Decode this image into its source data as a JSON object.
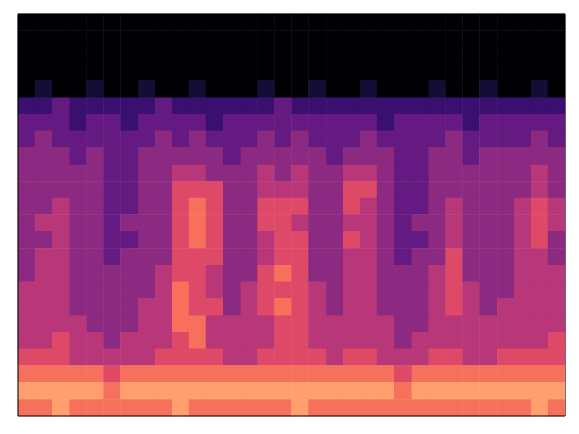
{
  "chart_data": {
    "type": "heatmap",
    "tick_labels": false,
    "grid": false,
    "color_range": [
      0,
      9
    ],
    "cells": [
      [
        0,
        0,
        0,
        0,
        0,
        0,
        0,
        0,
        0,
        0,
        0,
        0,
        0,
        0,
        0,
        0,
        0,
        0,
        0,
        0,
        0,
        0,
        0,
        0,
        0,
        0,
        0,
        0,
        0,
        0,
        0,
        0
      ],
      [
        0,
        0,
        0,
        0,
        0,
        0,
        0,
        0,
        0,
        0,
        0,
        0,
        0,
        0,
        0,
        0,
        0,
        0,
        0,
        0,
        0,
        0,
        0,
        0,
        0,
        0,
        0,
        0,
        0,
        0,
        0,
        0
      ],
      [
        0,
        0,
        0,
        0,
        0,
        0,
        0,
        0,
        0,
        0,
        0,
        0,
        0,
        0,
        0,
        0,
        0,
        0,
        0,
        0,
        0,
        0,
        0,
        0,
        0,
        0,
        0,
        0,
        0,
        0,
        0,
        0
      ],
      [
        0,
        0,
        0,
        0,
        0,
        0,
        0,
        0,
        0,
        0,
        0,
        0,
        0,
        0,
        0,
        0,
        0,
        0,
        0,
        0,
        0,
        0,
        0,
        0,
        0,
        0,
        0,
        0,
        0,
        0,
        0,
        0
      ],
      [
        0,
        1,
        0,
        0,
        1,
        0,
        0,
        1,
        0,
        0,
        1,
        0,
        0,
        0,
        1,
        0,
        0,
        1,
        0,
        0,
        1,
        0,
        0,
        0,
        1,
        0,
        0,
        1,
        0,
        0,
        1,
        0
      ],
      [
        2,
        2,
        3,
        2,
        2,
        2,
        2,
        2,
        3,
        2,
        2,
        2,
        2,
        2,
        2,
        3,
        2,
        2,
        2,
        2,
        2,
        2,
        2,
        2,
        2,
        2,
        2,
        2,
        2,
        2,
        2,
        2
      ],
      [
        3,
        3,
        3,
        2,
        3,
        3,
        2,
        3,
        3,
        3,
        3,
        2,
        3,
        3,
        3,
        3,
        3,
        3,
        3,
        3,
        3,
        2,
        3,
        3,
        3,
        3,
        2,
        3,
        3,
        3,
        3,
        3
      ],
      [
        3,
        4,
        3,
        3,
        3,
        3,
        3,
        3,
        4,
        3,
        4,
        3,
        3,
        3,
        4,
        3,
        4,
        3,
        3,
        3,
        4,
        3,
        3,
        3,
        3,
        4,
        3,
        3,
        3,
        3,
        4,
        3
      ],
      [
        4,
        4,
        4,
        3,
        4,
        3,
        3,
        4,
        4,
        4,
        4,
        4,
        3,
        4,
        4,
        4,
        4,
        4,
        3,
        4,
        4,
        4,
        3,
        3,
        4,
        4,
        3,
        4,
        4,
        4,
        4,
        4
      ],
      [
        4,
        4,
        4,
        4,
        4,
        3,
        3,
        4,
        4,
        5,
        5,
        4,
        4,
        4,
        5,
        4,
        5,
        4,
        4,
        5,
        5,
        4,
        3,
        3,
        4,
        4,
        4,
        4,
        4,
        4,
        5,
        4
      ],
      [
        4,
        4,
        4,
        4,
        4,
        3,
        3,
        4,
        4,
        6,
        6,
        6,
        4,
        4,
        5,
        5,
        5,
        4,
        4,
        6,
        6,
        4,
        3,
        3,
        4,
        4,
        4,
        4,
        4,
        4,
        5,
        4
      ],
      [
        4,
        4,
        5,
        4,
        4,
        3,
        3,
        4,
        4,
        6,
        7,
        6,
        4,
        4,
        6,
        6,
        6,
        4,
        4,
        6,
        5,
        4,
        3,
        3,
        4,
        5,
        4,
        4,
        4,
        5,
        6,
        5
      ],
      [
        4,
        5,
        5,
        4,
        4,
        3,
        4,
        4,
        4,
        6,
        7,
        6,
        4,
        4,
        6,
        6,
        5,
        4,
        4,
        5,
        5,
        4,
        3,
        4,
        4,
        5,
        4,
        4,
        4,
        5,
        6,
        5
      ],
      [
        4,
        4,
        5,
        4,
        4,
        3,
        3,
        4,
        4,
        6,
        7,
        6,
        4,
        4,
        5,
        6,
        6,
        4,
        4,
        6,
        5,
        4,
        3,
        3,
        4,
        5,
        4,
        4,
        4,
        5,
        6,
        4
      ],
      [
        4,
        5,
        5,
        4,
        4,
        3,
        4,
        4,
        4,
        6,
        6,
        6,
        4,
        4,
        5,
        6,
        6,
        4,
        4,
        5,
        5,
        4,
        3,
        4,
        4,
        6,
        4,
        4,
        4,
        5,
        5,
        4
      ],
      [
        4,
        5,
        5,
        4,
        4,
        4,
        4,
        4,
        5,
        6,
        6,
        5,
        4,
        4,
        6,
        7,
        6,
        4,
        4,
        5,
        5,
        4,
        4,
        4,
        5,
        6,
        4,
        4,
        4,
        5,
        5,
        5
      ],
      [
        5,
        5,
        5,
        4,
        4,
        4,
        4,
        4,
        5,
        7,
        6,
        5,
        4,
        5,
        6,
        6,
        6,
        5,
        4,
        5,
        5,
        4,
        4,
        4,
        5,
        6,
        5,
        4,
        4,
        5,
        5,
        5
      ],
      [
        5,
        5,
        5,
        4,
        4,
        4,
        4,
        5,
        5,
        7,
        6,
        6,
        4,
        5,
        6,
        7,
        6,
        5,
        4,
        5,
        5,
        4,
        4,
        4,
        5,
        6,
        5,
        4,
        5,
        5,
        5,
        5
      ],
      [
        5,
        5,
        5,
        5,
        4,
        4,
        4,
        5,
        5,
        7,
        7,
        5,
        5,
        5,
        5,
        6,
        6,
        5,
        5,
        5,
        5,
        5,
        4,
        4,
        5,
        5,
        5,
        5,
        5,
        5,
        5,
        5
      ],
      [
        5,
        5,
        6,
        5,
        5,
        4,
        5,
        5,
        5,
        6,
        7,
        5,
        5,
        5,
        5,
        6,
        6,
        5,
        5,
        5,
        5,
        5,
        4,
        5,
        5,
        5,
        5,
        5,
        5,
        5,
        5,
        6
      ],
      [
        6,
        6,
        6,
        5,
        5,
        5,
        5,
        5,
        6,
        6,
        6,
        6,
        5,
        5,
        6,
        6,
        6,
        6,
        5,
        6,
        6,
        5,
        5,
        5,
        6,
        6,
        5,
        5,
        6,
        6,
        6,
        6
      ],
      [
        7,
        7,
        7,
        7,
        7,
        6,
        7,
        7,
        7,
        7,
        7,
        7,
        7,
        7,
        7,
        7,
        7,
        7,
        7,
        7,
        7,
        7,
        6,
        7,
        7,
        7,
        7,
        7,
        7,
        7,
        7,
        7
      ],
      [
        8,
        8,
        8,
        8,
        8,
        7,
        8,
        8,
        8,
        8,
        8,
        8,
        8,
        8,
        8,
        8,
        8,
        8,
        8,
        8,
        8,
        8,
        7,
        8,
        8,
        8,
        8,
        8,
        8,
        8,
        8,
        8
      ],
      [
        7,
        7,
        8,
        7,
        7,
        7,
        7,
        7,
        7,
        8,
        7,
        7,
        7,
        7,
        7,
        7,
        8,
        7,
        7,
        7,
        7,
        7,
        7,
        7,
        7,
        7,
        7,
        7,
        7,
        7,
        8,
        7
      ]
    ]
  }
}
